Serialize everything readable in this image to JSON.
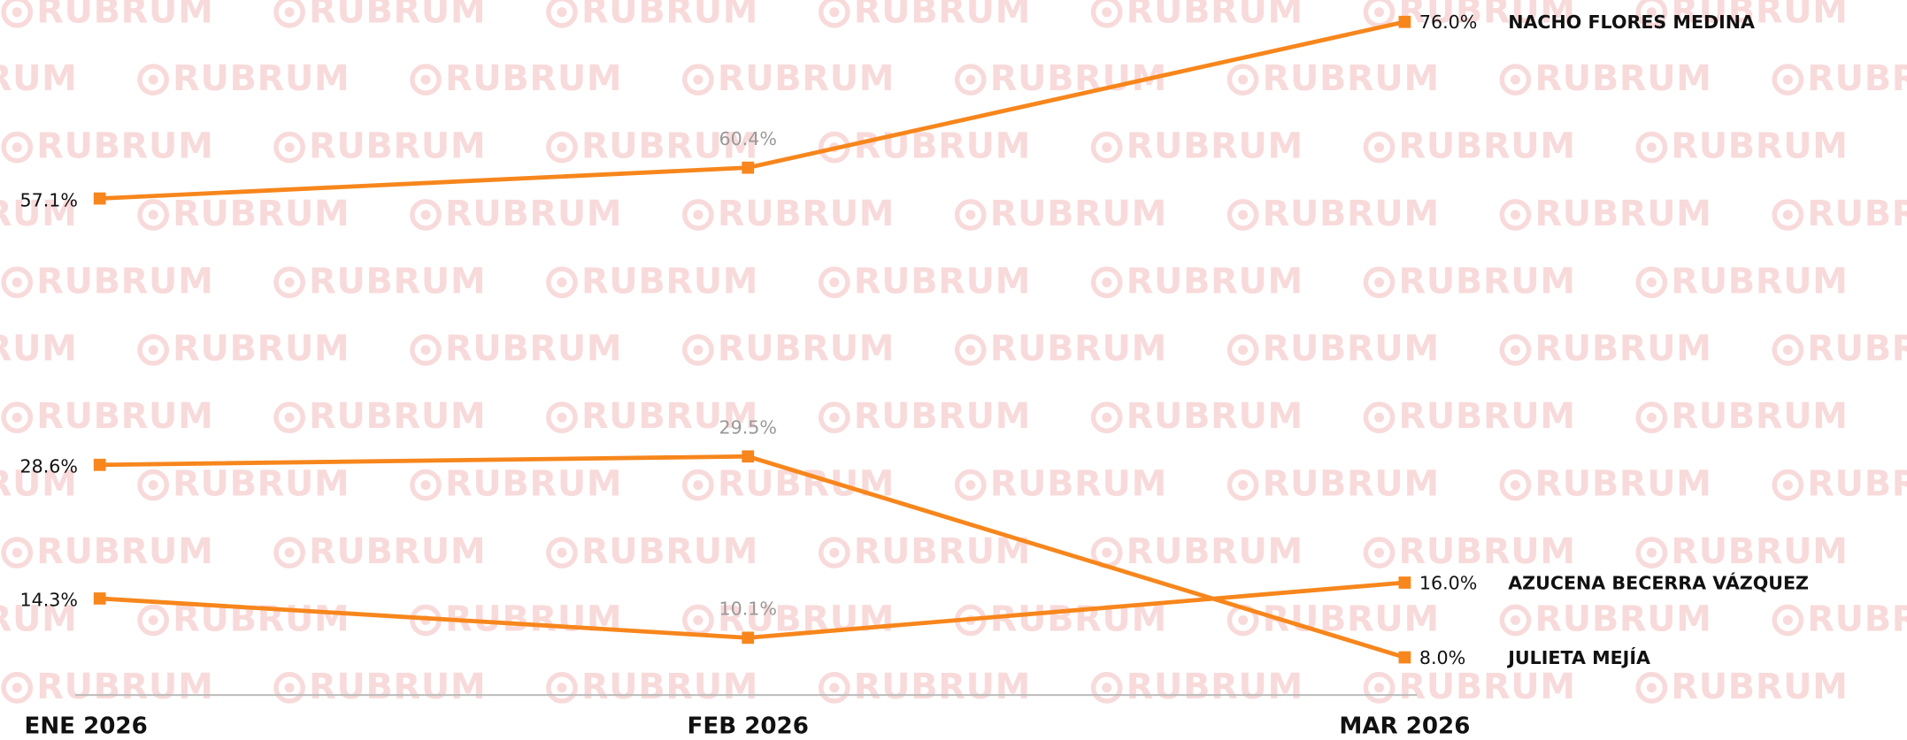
{
  "watermark": "RUBRUM",
  "chart_data": {
    "type": "line",
    "categories": [
      "ENE 2026",
      "FEB 2026",
      "MAR 2026"
    ],
    "series": [
      {
        "name": "NACHO FLORES MEDINA",
        "color": "#f7861c",
        "values": [
          57.1,
          60.4,
          76.0
        ],
        "value_labels": [
          "57.1%",
          "60.4%",
          "76.0%"
        ]
      },
      {
        "name": "JULIETA MEJÍA",
        "color": "#f7861c",
        "values": [
          28.6,
          29.5,
          8.0
        ],
        "value_labels": [
          "28.6%",
          "29.5%",
          "8.0%"
        ]
      },
      {
        "name": "AZUCENA BECERRA VÁZQUEZ",
        "color": "#f7861c",
        "values": [
          14.3,
          10.1,
          16.0
        ],
        "value_labels": [
          "14.3%",
          "10.1%",
          "16.0%"
        ]
      }
    ]
  }
}
